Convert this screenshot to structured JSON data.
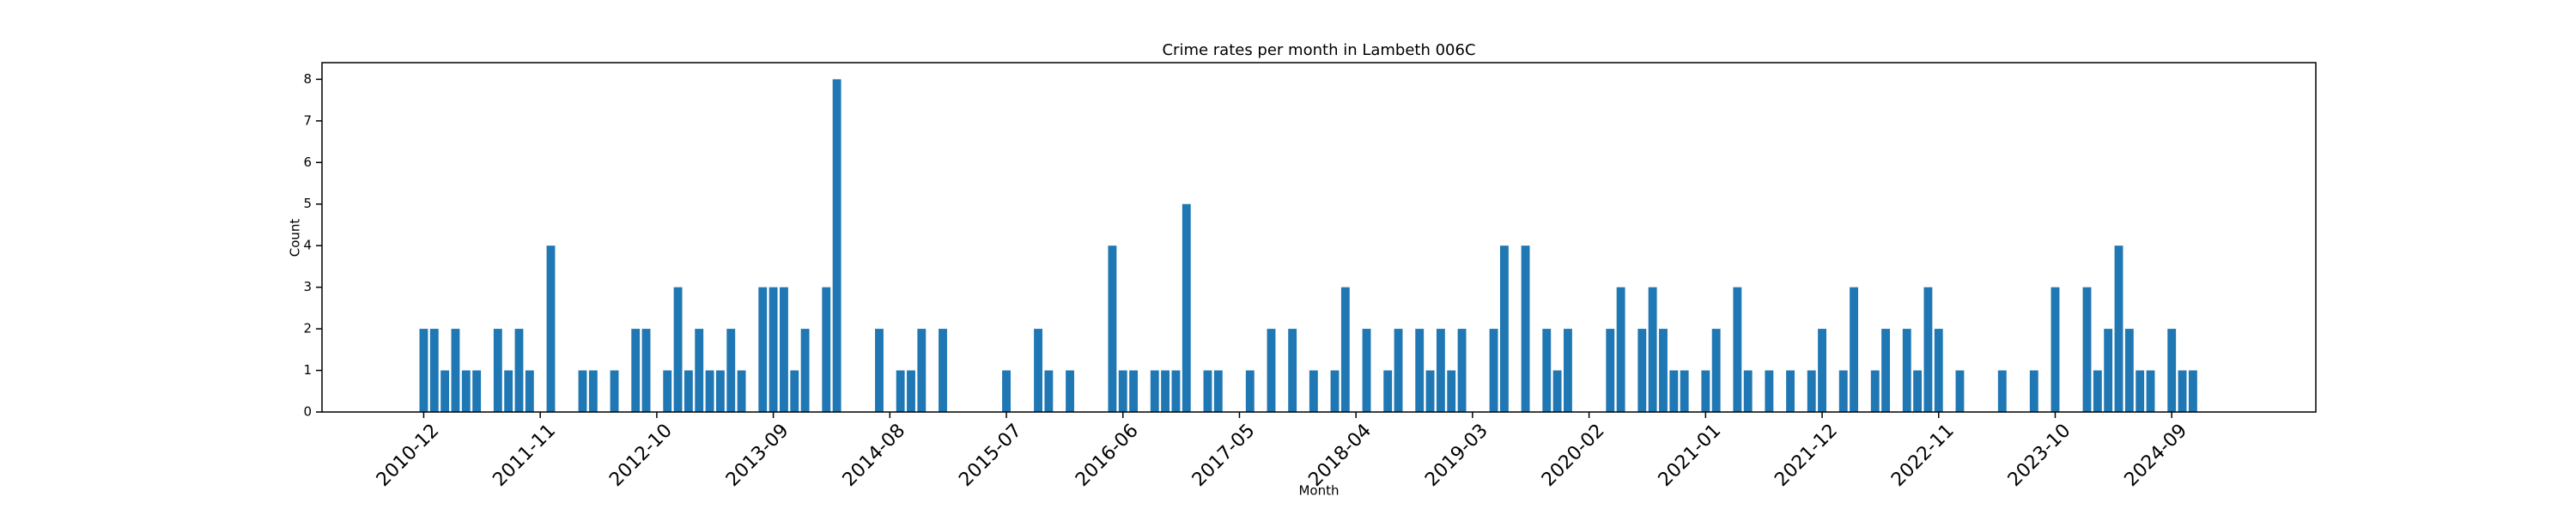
{
  "chart_data": {
    "type": "bar",
    "title": "Crime rates per month in Lambeth 006C",
    "xlabel": "Month",
    "ylabel": "Count",
    "color": "#1f77b4",
    "categories": [
      "2010-12",
      null,
      null,
      null,
      null,
      null,
      null,
      null,
      null,
      null,
      null,
      "2011-11",
      null,
      null,
      null,
      null,
      null,
      null,
      null,
      null,
      null,
      null,
      "2012-10",
      null,
      null,
      null,
      null,
      null,
      null,
      null,
      null,
      null,
      null,
      "2013-09",
      null,
      null,
      null,
      null,
      null,
      null,
      null,
      null,
      null,
      null,
      "2014-08",
      null,
      null,
      null,
      null,
      null,
      null,
      null,
      null,
      null,
      null,
      "2015-07",
      null,
      null,
      null,
      null,
      null,
      null,
      null,
      null,
      null,
      null,
      "2016-06",
      null,
      null,
      null,
      null,
      null,
      null,
      null,
      null,
      null,
      null,
      "2017-05",
      null,
      null,
      null,
      null,
      null,
      null,
      null,
      null,
      null,
      null,
      "2018-04",
      null,
      null,
      null,
      null,
      null,
      null,
      null,
      null,
      null,
      null,
      "2019-03",
      null,
      null,
      null,
      null,
      null,
      null,
      null,
      null,
      null,
      null,
      "2020-02",
      null,
      null,
      null,
      null,
      null,
      null,
      null,
      null,
      null,
      null,
      "2021-01",
      null,
      null,
      null,
      null,
      null,
      null,
      null,
      null,
      null,
      null,
      "2021-12",
      null,
      null,
      null,
      null,
      null,
      null,
      null,
      null,
      null,
      null,
      "2022-11",
      null,
      null,
      null,
      null,
      null,
      null,
      null,
      null,
      null,
      null,
      "2023-10",
      null,
      null,
      null,
      null,
      null,
      null,
      null,
      null,
      null,
      null,
      "2024-09",
      null,
      null
    ],
    "values": [
      2,
      2,
      1,
      2,
      1,
      1,
      0,
      2,
      1,
      2,
      1,
      0,
      4,
      0,
      0,
      1,
      1,
      0,
      1,
      0,
      2,
      2,
      0,
      1,
      3,
      1,
      2,
      1,
      1,
      2,
      1,
      0,
      3,
      3,
      3,
      1,
      2,
      0,
      3,
      8,
      0,
      0,
      0,
      2,
      0,
      1,
      1,
      2,
      0,
      2,
      0,
      0,
      0,
      0,
      0,
      1,
      0,
      0,
      2,
      1,
      0,
      1,
      0,
      0,
      0,
      4,
      1,
      1,
      0,
      1,
      1,
      1,
      5,
      0,
      1,
      1,
      0,
      0,
      1,
      0,
      2,
      0,
      2,
      0,
      1,
      0,
      1,
      3,
      0,
      2,
      0,
      1,
      2,
      0,
      2,
      1,
      2,
      1,
      2,
      0,
      0,
      2,
      4,
      0,
      4,
      0,
      2,
      1,
      2,
      0,
      0,
      0,
      2,
      3,
      0,
      2,
      3,
      2,
      1,
      1,
      0,
      1,
      2,
      0,
      3,
      1,
      0,
      1,
      0,
      1,
      0,
      1,
      2,
      0,
      1,
      3,
      0,
      1,
      2,
      0,
      2,
      1,
      3,
      2,
      0,
      1,
      0,
      0,
      0,
      1,
      0,
      0,
      1,
      0,
      3,
      0,
      0,
      3,
      1,
      2,
      4,
      2,
      1,
      1,
      0,
      2,
      1,
      1
    ],
    "xlim": [
      -9.6,
      178.6
    ],
    "ylim": [
      0,
      8.4
    ],
    "yticks": [
      0,
      1,
      2,
      3,
      4,
      5,
      6,
      7,
      8
    ]
  }
}
